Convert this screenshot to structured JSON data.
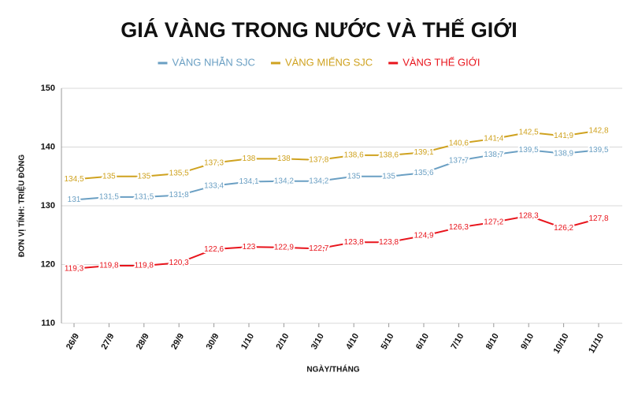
{
  "chart_data": {
    "type": "line",
    "title": "GIÁ VÀNG TRONG NƯỚC VÀ THẾ GIỚI",
    "x_label": "NGÀY/THÁNG",
    "y_label": "ĐƠN VỊ TÍNH: TRIỆU ĐỒNG",
    "categories": [
      "26/9",
      "27/9",
      "28/9",
      "29/9",
      "30/9",
      "1/10",
      "2/10",
      "3/10",
      "4/10",
      "5/10",
      "6/10",
      "7/10",
      "8/10",
      "9/10",
      "10/10",
      "11/10"
    ],
    "series": [
      {
        "name": "VÀNG NHẪN SJC",
        "color": "#6a9fc3",
        "values": [
          131,
          131.5,
          131.5,
          131.8,
          133.4,
          134.1,
          134.2,
          134.2,
          135,
          135,
          135.6,
          137.7,
          138.7,
          139.5,
          138.9,
          139.5
        ],
        "value_labels": [
          "131",
          "131,5",
          "131,5",
          "131,8",
          "133,4",
          "134,1",
          "134,2",
          "134,2",
          "135",
          "135",
          "135,6",
          "137,7",
          "138,7",
          "139,5",
          "138,9",
          "139,5"
        ]
      },
      {
        "name": "VÀNG MIẾNG SJC",
        "color": "#cfa21f",
        "values": [
          134.5,
          135,
          135,
          135.5,
          137.3,
          138,
          138,
          137.8,
          138.6,
          138.6,
          139.1,
          140.6,
          141.4,
          142.5,
          141.9,
          142.8
        ],
        "value_labels": [
          "134,5",
          "135",
          "135",
          "135,5",
          "137,3",
          "138",
          "138",
          "137,8",
          "138,6",
          "138,6",
          "139,1",
          "140,6",
          "141,4",
          "142,5",
          "141,9",
          "142,8"
        ]
      },
      {
        "name": "VÀNG THẾ GIỚI",
        "color": "#e8141c",
        "values": [
          119.3,
          119.8,
          119.8,
          120.3,
          122.6,
          123,
          122.9,
          122.7,
          123.8,
          123.8,
          124.9,
          126.3,
          127.2,
          128.3,
          126.2,
          127.8
        ],
        "value_labels": [
          "119,3",
          "119,8",
          "119,8",
          "120,3",
          "122,6",
          "123",
          "122,9",
          "122,7",
          "123,8",
          "123,8",
          "124,9",
          "126,3",
          "127,2",
          "128,3",
          "126,2",
          "127,8"
        ]
      }
    ],
    "ylim": [
      110,
      150
    ],
    "yticks": [
      110,
      120,
      130,
      140,
      150
    ],
    "grid": true
  }
}
